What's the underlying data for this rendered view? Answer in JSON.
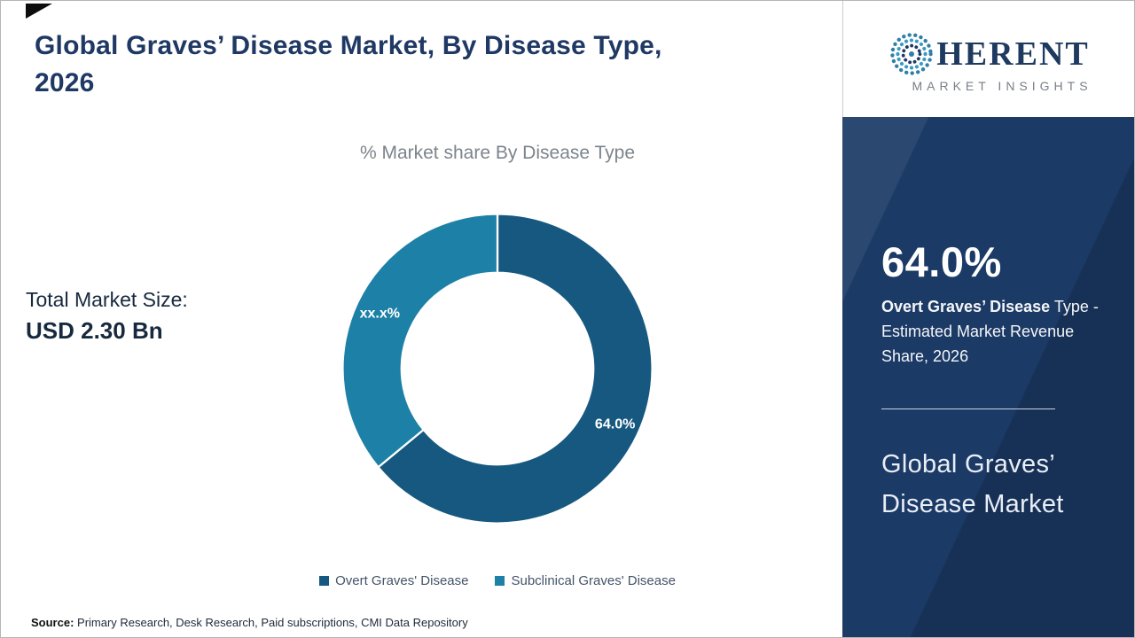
{
  "title": "Global Graves’ Disease Market, By Disease Type,\n2026",
  "chart_data": {
    "type": "pie",
    "donut": true,
    "title": "% Market share By Disease Type",
    "categories": [
      "Overt Graves' Disease",
      "Subclinical Graves' Disease"
    ],
    "values": [
      64.0,
      36.0
    ],
    "labels": [
      "64.0%",
      "xx.x%"
    ],
    "colors": [
      "#16587F",
      "#1D80A6"
    ],
    "legend_position": "bottom",
    "start_angle_deg": 0,
    "direction": "clockwise"
  },
  "total_market": {
    "label": "Total Market Size:",
    "value": "USD 2.30 Bn"
  },
  "source": {
    "label": "Source:",
    "text": " Primary Research, Desk Research, Paid subscriptions, CMI Data Repository"
  },
  "sidebar": {
    "stat_value": "64.0%",
    "stat_label_bold": "Overt Graves’ Disease",
    "stat_label_rest": "Type - Estimated Market Revenue Share, 2026",
    "market_name": "Global Graves’\nDisease Market",
    "colors": {
      "background": "#1B3A66"
    }
  },
  "logo": {
    "brand_rest": "HERENT",
    "tagline": "MARKET INSIGHTS",
    "brand_navy": "#1E3A5F"
  }
}
